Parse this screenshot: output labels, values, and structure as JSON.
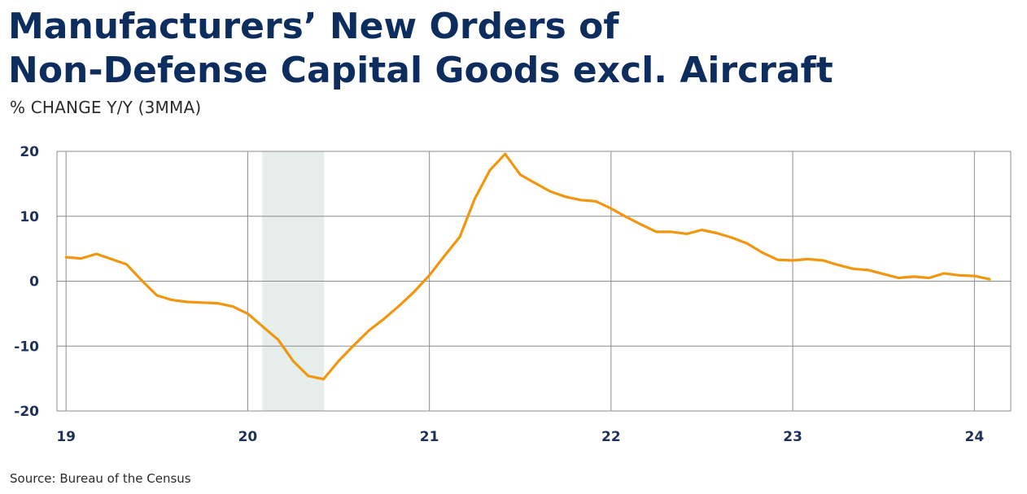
{
  "header": {
    "title_line1": "Manufacturers’ New Orders of",
    "title_line2": "Non-Defense Capital Goods excl. Aircraft",
    "subtitle": "% CHANGE Y/Y (3MMA)"
  },
  "footer": {
    "source": "Source:  Bureau of the Census"
  },
  "colors": {
    "line": "#f0960f",
    "recession": "#e6eeeb",
    "grid": "#8c8c8c",
    "title": "#0d2d5e",
    "tick": "#1e3158"
  },
  "chart_data": {
    "type": "line",
    "title": "Manufacturers’ New Orders of Non-Defense Capital Goods excl. Aircraft",
    "subtitle": "% CHANGE Y/Y (3MMA)",
    "xlabel": "",
    "ylabel": "",
    "xlim": [
      2018.95,
      2024.2
    ],
    "ylim": [
      -20,
      20
    ],
    "y_ticks": [
      20,
      10,
      0,
      -10,
      -20
    ],
    "y_tick_labels": [
      "20",
      "10",
      "0",
      "-10",
      "-20"
    ],
    "x_ticks": [
      2019,
      2020,
      2021,
      2022,
      2023,
      2024
    ],
    "x_tick_labels": [
      "19",
      "20",
      "21",
      "22",
      "23",
      "24"
    ],
    "grid": true,
    "legend": "none",
    "shaded_regions": [
      {
        "x_start": 2020.08,
        "x_end": 2020.42,
        "label": ""
      }
    ],
    "series": [
      {
        "x": [
          2019.0,
          2019.083,
          2019.167,
          2019.25,
          2019.333,
          2019.417,
          2019.5,
          2019.583,
          2019.667,
          2019.75,
          2019.833,
          2019.917,
          2020.0,
          2020.083,
          2020.167,
          2020.25,
          2020.333,
          2020.417,
          2020.5,
          2020.583,
          2020.667,
          2020.75,
          2020.833,
          2020.917,
          2021.0,
          2021.083,
          2021.167,
          2021.25,
          2021.333,
          2021.417,
          2021.5,
          2021.583,
          2021.667,
          2021.75,
          2021.833,
          2021.917,
          2022.0,
          2022.083,
          2022.167,
          2022.25,
          2022.333,
          2022.417,
          2022.5,
          2022.583,
          2022.667,
          2022.75,
          2022.833,
          2022.917,
          2023.0,
          2023.083,
          2023.167,
          2023.25,
          2023.333,
          2023.417,
          2023.5,
          2023.583,
          2023.667,
          2023.75,
          2023.833,
          2023.917,
          2024.0,
          2024.083
        ],
        "values": [
          3.7,
          3.5,
          4.2,
          3.4,
          2.6,
          0.1,
          -2.2,
          -2.9,
          -3.2,
          -3.3,
          -3.4,
          -3.9,
          -5.0,
          -7.0,
          -9.0,
          -12.3,
          -14.6,
          -15.1,
          -12.3,
          -9.9,
          -7.6,
          -5.8,
          -3.8,
          -1.6,
          0.9,
          3.9,
          6.8,
          12.7,
          17.1,
          19.6,
          16.4,
          15.1,
          13.8,
          13.0,
          12.5,
          12.3,
          11.2,
          9.9,
          8.7,
          7.6,
          7.6,
          7.3,
          7.9,
          7.4,
          6.7,
          5.8,
          4.4,
          3.3,
          3.2,
          3.4,
          3.2,
          2.5,
          1.9,
          1.7,
          1.1,
          0.5,
          0.7,
          0.5,
          1.2,
          0.9,
          0.8,
          0.3
        ]
      }
    ]
  }
}
